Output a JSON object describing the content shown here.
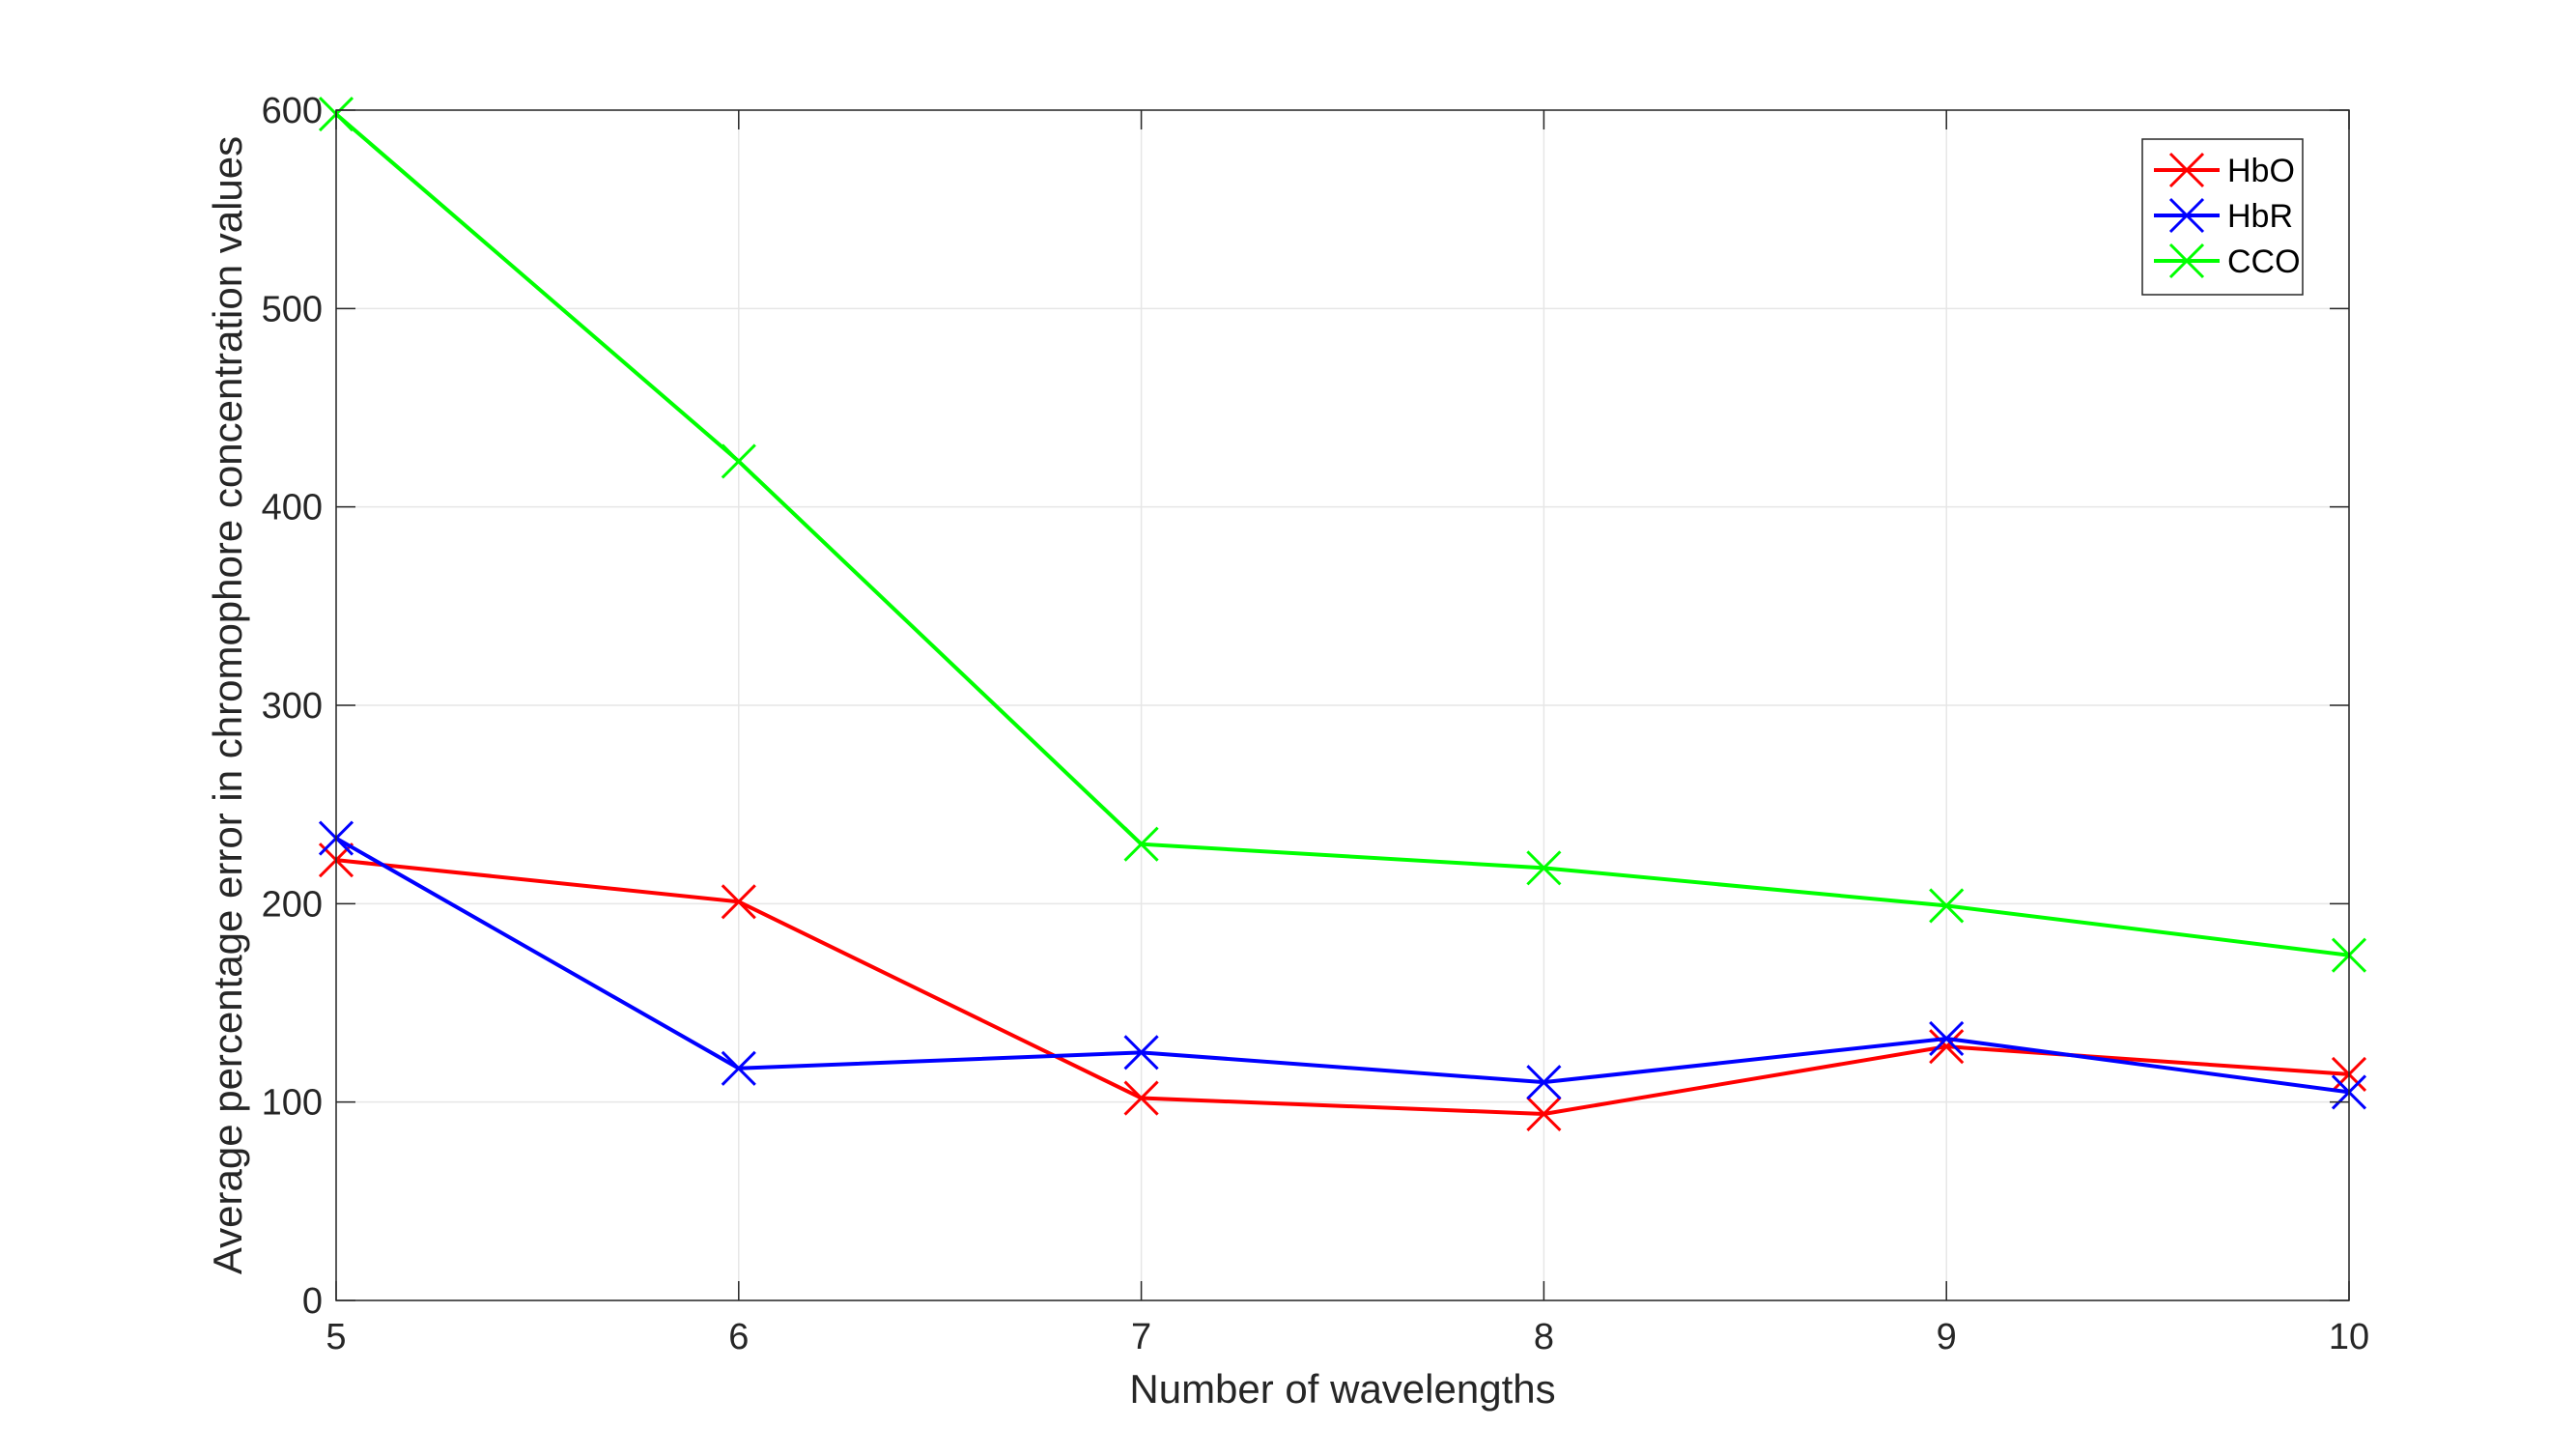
{
  "chart_data": {
    "type": "line",
    "title": "",
    "xlabel": "Number of wavelengths",
    "ylabel": "Average percentage error in chromophore concentration values",
    "x": [
      5,
      6,
      7,
      8,
      9,
      10
    ],
    "xlim": [
      5,
      10
    ],
    "ylim": [
      0,
      600
    ],
    "xticks": [
      "5",
      "6",
      "7",
      "8",
      "9",
      "10"
    ],
    "yticks": [
      "0",
      "100",
      "200",
      "300",
      "400",
      "500",
      "600"
    ],
    "grid": true,
    "legend_position": "top-right",
    "marker": "x",
    "series": [
      {
        "name": "HbO",
        "color": "#ff0000",
        "values": [
          222,
          201,
          102,
          94,
          128,
          114
        ]
      },
      {
        "name": "HbR",
        "color": "#0000ff",
        "values": [
          233,
          117,
          125,
          110,
          132,
          105
        ]
      },
      {
        "name": "CCO",
        "color": "#00ff00",
        "values": [
          598,
          423,
          230,
          218,
          199,
          174
        ]
      }
    ]
  }
}
